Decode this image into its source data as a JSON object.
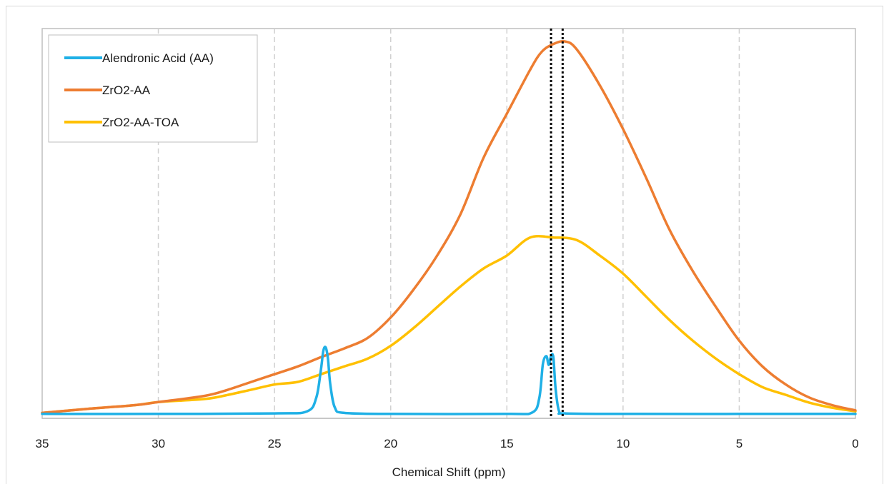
{
  "chart_data": {
    "type": "line",
    "title": "",
    "xlabel": "Chemical Shift (ppm)",
    "ylabel": "",
    "xlim": [
      35,
      0
    ],
    "x_reversed": true,
    "x_ticks": [
      35,
      30,
      25,
      20,
      15,
      10,
      5,
      0
    ],
    "grid": "vertical dashed",
    "legend_position": "top-left",
    "reference_lines": [
      13.1,
      12.6
    ],
    "series": [
      {
        "name": "Alendronic Acid (AA)",
        "color": "#1fb0e6",
        "x": [
          35,
          30,
          25,
          23.6,
          23.2,
          23.0,
          22.9,
          22.8,
          22.7,
          22.6,
          22.4,
          22.0,
          20,
          15,
          13.9,
          13.6,
          13.45,
          13.3,
          13.2,
          13.1,
          13.0,
          12.9,
          12.75,
          12.5,
          10,
          5,
          0
        ],
        "y": [
          0.3,
          0.3,
          0.4,
          0.8,
          3.5,
          9.0,
          12.5,
          13.2,
          11.0,
          6.0,
          1.5,
          0.5,
          0.3,
          0.3,
          0.6,
          3.5,
          10.0,
          11.5,
          9.8,
          11.5,
          11.3,
          5.0,
          0.8,
          0.4,
          0.3,
          0.3,
          0.3
        ]
      },
      {
        "name": "ZrO2-AA",
        "color": "#ed7d31",
        "x": [
          35,
          33,
          31,
          30,
          28,
          27,
          26,
          25,
          24,
          23,
          22,
          21,
          20,
          19,
          18,
          17,
          16,
          15,
          14,
          13.5,
          13,
          12.5,
          12,
          11,
          10,
          9,
          8,
          7,
          6,
          5,
          4,
          3,
          2,
          1,
          0
        ],
        "y": [
          0.5,
          1.3,
          2.0,
          2.6,
          3.8,
          5.0,
          6.5,
          8.0,
          9.5,
          11.3,
          13.0,
          15.0,
          19.0,
          24.5,
          31.0,
          39.0,
          50.0,
          58.5,
          67.0,
          70.5,
          72.0,
          72.5,
          71.0,
          64.0,
          55.5,
          46.0,
          36.0,
          28.0,
          21.0,
          14.5,
          9.5,
          6.0,
          3.5,
          2.0,
          1.0
        ]
      },
      {
        "name": "ZrO2-AA-TOA",
        "color": "#ffc000",
        "x": [
          35,
          33,
          31,
          30,
          28,
          27,
          26,
          25,
          24,
          23,
          22,
          21,
          20,
          19,
          18,
          17,
          16,
          15,
          14,
          13,
          12,
          11,
          10,
          9,
          8,
          7,
          6,
          5,
          4,
          3,
          2,
          1,
          0
        ],
        "y": [
          0.5,
          1.3,
          2.0,
          2.6,
          3.2,
          4.0,
          5.0,
          6.0,
          6.5,
          8.0,
          9.5,
          11.0,
          13.5,
          17.0,
          21.0,
          25.0,
          28.5,
          31.0,
          34.5,
          34.5,
          34.0,
          31.0,
          27.5,
          23.0,
          18.5,
          14.5,
          11.0,
          8.0,
          5.5,
          4.0,
          2.5,
          1.5,
          0.8
        ]
      }
    ]
  }
}
